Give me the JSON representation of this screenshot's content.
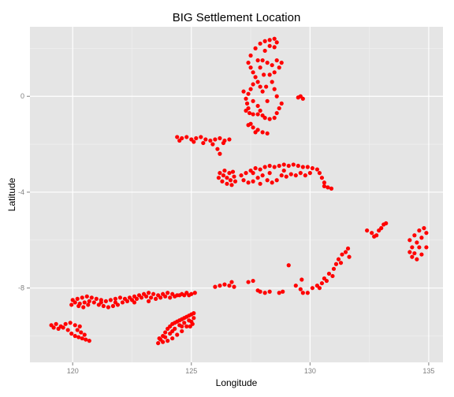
{
  "chart_data": {
    "type": "scatter",
    "title": "BIG Settlement Location",
    "xlabel": "Longitude",
    "ylabel": "Latitude",
    "xlim": [
      118.2,
      135.6
    ],
    "ylim": [
      -11.1,
      2.9
    ],
    "x_ticks": [
      120,
      125,
      130,
      135
    ],
    "y_ticks": [
      0,
      -4,
      -8
    ],
    "grid": true,
    "panel_color": "#e5e5e5",
    "grid_color": "#ffffff",
    "point_color": "#ff0000",
    "series": [
      {
        "points": [
          [
            119.1,
            -9.55
          ],
          [
            119.3,
            -9.5
          ],
          [
            119.5,
            -9.6
          ],
          [
            119.7,
            -9.5
          ],
          [
            119.9,
            -9.45
          ],
          [
            120.1,
            -9.55
          ],
          [
            120.3,
            -9.6
          ],
          [
            119.2,
            -9.65
          ],
          [
            119.4,
            -9.7
          ],
          [
            119.6,
            -9.65
          ],
          [
            119.8,
            -9.75
          ],
          [
            119.95,
            -9.9
          ],
          [
            120.1,
            -10.0
          ],
          [
            120.25,
            -10.05
          ],
          [
            120.4,
            -10.1
          ],
          [
            120.55,
            -10.15
          ],
          [
            120.7,
            -10.2
          ],
          [
            120.5,
            -9.95
          ],
          [
            120.35,
            -9.85
          ],
          [
            120.2,
            -9.75
          ],
          [
            120.0,
            -8.5
          ],
          [
            120.2,
            -8.45
          ],
          [
            120.4,
            -8.4
          ],
          [
            120.6,
            -8.35
          ],
          [
            120.8,
            -8.4
          ],
          [
            121.0,
            -8.45
          ],
          [
            121.2,
            -8.5
          ],
          [
            121.4,
            -8.55
          ],
          [
            121.6,
            -8.5
          ],
          [
            121.8,
            -8.45
          ],
          [
            122.0,
            -8.4
          ],
          [
            122.2,
            -8.45
          ],
          [
            122.4,
            -8.4
          ],
          [
            122.6,
            -8.35
          ],
          [
            122.8,
            -8.3
          ],
          [
            123.0,
            -8.25
          ],
          [
            123.2,
            -8.2
          ],
          [
            123.4,
            -8.25
          ],
          [
            123.6,
            -8.3
          ],
          [
            123.8,
            -8.25
          ],
          [
            124.0,
            -8.2
          ],
          [
            124.2,
            -8.25
          ],
          [
            124.4,
            -8.3
          ],
          [
            124.6,
            -8.25
          ],
          [
            124.8,
            -8.2
          ],
          [
            125.0,
            -8.25
          ],
          [
            125.15,
            -8.2
          ],
          [
            120.1,
            -8.6
          ],
          [
            120.3,
            -8.65
          ],
          [
            120.5,
            -8.6
          ],
          [
            120.7,
            -8.55
          ],
          [
            120.9,
            -8.6
          ],
          [
            121.1,
            -8.7
          ],
          [
            121.3,
            -8.75
          ],
          [
            121.5,
            -8.8
          ],
          [
            121.7,
            -8.75
          ],
          [
            121.9,
            -8.7
          ],
          [
            122.1,
            -8.6
          ],
          [
            122.3,
            -8.55
          ],
          [
            122.5,
            -8.5
          ],
          [
            122.7,
            -8.45
          ],
          [
            122.9,
            -8.4
          ],
          [
            123.1,
            -8.35
          ],
          [
            123.3,
            -8.4
          ],
          [
            123.5,
            -8.45
          ],
          [
            123.7,
            -8.4
          ],
          [
            123.9,
            -8.35
          ],
          [
            124.1,
            -8.4
          ],
          [
            124.3,
            -8.35
          ],
          [
            124.5,
            -8.3
          ],
          [
            124.7,
            -8.3
          ],
          [
            124.9,
            -8.3
          ],
          [
            120.25,
            -8.75
          ],
          [
            120.45,
            -8.8
          ],
          [
            120.65,
            -8.7
          ],
          [
            121.2,
            -8.6
          ],
          [
            121.8,
            -8.6
          ],
          [
            122.6,
            -8.6
          ],
          [
            123.2,
            -8.55
          ],
          [
            119.95,
            -8.7
          ],
          [
            123.6,
            -10.3
          ],
          [
            123.7,
            -10.15
          ],
          [
            123.8,
            -10.0
          ],
          [
            123.9,
            -9.85
          ],
          [
            124.0,
            -9.7
          ],
          [
            124.1,
            -9.6
          ],
          [
            124.2,
            -9.5
          ],
          [
            124.3,
            -9.45
          ],
          [
            124.4,
            -9.4
          ],
          [
            124.5,
            -9.35
          ],
          [
            124.6,
            -9.3
          ],
          [
            124.7,
            -9.25
          ],
          [
            124.8,
            -9.2
          ],
          [
            124.9,
            -9.15
          ],
          [
            125.0,
            -9.1
          ],
          [
            125.1,
            -9.05
          ],
          [
            123.65,
            -10.1
          ],
          [
            123.8,
            -10.25
          ],
          [
            124.0,
            -10.2
          ],
          [
            124.2,
            -10.1
          ],
          [
            124.4,
            -9.95
          ],
          [
            124.6,
            -9.8
          ],
          [
            124.8,
            -9.6
          ],
          [
            125.0,
            -9.4
          ],
          [
            125.1,
            -9.25
          ],
          [
            124.1,
            -9.9
          ],
          [
            124.3,
            -9.7
          ],
          [
            124.5,
            -9.55
          ],
          [
            124.7,
            -9.45
          ],
          [
            124.9,
            -9.35
          ],
          [
            123.9,
            -10.05
          ],
          [
            124.2,
            -9.8
          ],
          [
            124.6,
            -9.6
          ],
          [
            124.95,
            -9.6
          ],
          [
            125.05,
            -9.5
          ],
          [
            126.0,
            -7.95
          ],
          [
            126.2,
            -7.9
          ],
          [
            126.4,
            -7.85
          ],
          [
            126.6,
            -7.9
          ],
          [
            126.8,
            -7.95
          ],
          [
            127.4,
            -7.75
          ],
          [
            127.6,
            -7.7
          ],
          [
            127.8,
            -8.1
          ],
          [
            127.9,
            -8.15
          ],
          [
            128.1,
            -8.2
          ],
          [
            128.3,
            -8.15
          ],
          [
            128.7,
            -8.2
          ],
          [
            128.85,
            -8.15
          ],
          [
            129.1,
            -7.05
          ],
          [
            129.4,
            -7.9
          ],
          [
            129.6,
            -8.05
          ],
          [
            129.7,
            -8.2
          ],
          [
            129.65,
            -7.65
          ],
          [
            126.7,
            -7.75
          ],
          [
            129.9,
            -8.2
          ],
          [
            130.1,
            -8.0
          ],
          [
            130.3,
            -7.9
          ],
          [
            130.5,
            -7.8
          ],
          [
            130.6,
            -7.6
          ],
          [
            130.8,
            -7.4
          ],
          [
            131.0,
            -7.2
          ],
          [
            131.1,
            -7.0
          ],
          [
            131.2,
            -6.8
          ],
          [
            131.35,
            -6.6
          ],
          [
            131.3,
            -6.95
          ],
          [
            131.5,
            -6.5
          ],
          [
            131.6,
            -6.35
          ],
          [
            131.65,
            -6.7
          ],
          [
            130.95,
            -7.5
          ],
          [
            130.7,
            -7.7
          ],
          [
            130.4,
            -8.0
          ],
          [
            132.4,
            -5.6
          ],
          [
            132.6,
            -5.7
          ],
          [
            132.8,
            -5.8
          ],
          [
            132.9,
            -5.6
          ],
          [
            133.0,
            -5.5
          ],
          [
            133.1,
            -5.35
          ],
          [
            133.2,
            -5.3
          ],
          [
            132.7,
            -5.85
          ],
          [
            134.2,
            -6.0
          ],
          [
            134.4,
            -5.8
          ],
          [
            134.6,
            -5.6
          ],
          [
            134.8,
            -5.5
          ],
          [
            134.9,
            -5.7
          ],
          [
            134.7,
            -5.9
          ],
          [
            134.5,
            -6.1
          ],
          [
            134.3,
            -6.3
          ],
          [
            134.2,
            -6.5
          ],
          [
            134.3,
            -6.7
          ],
          [
            134.5,
            -6.8
          ],
          [
            134.7,
            -6.6
          ],
          [
            134.9,
            -6.3
          ],
          [
            134.6,
            -6.3
          ],
          [
            134.4,
            -6.55
          ],
          [
            124.4,
            -1.7
          ],
          [
            124.6,
            -1.75
          ],
          [
            124.8,
            -1.7
          ],
          [
            125.0,
            -1.8
          ],
          [
            125.2,
            -1.75
          ],
          [
            125.4,
            -1.7
          ],
          [
            125.6,
            -1.8
          ],
          [
            125.8,
            -1.85
          ],
          [
            126.0,
            -1.8
          ],
          [
            126.2,
            -1.75
          ],
          [
            126.4,
            -1.85
          ],
          [
            125.9,
            -2.0
          ],
          [
            126.1,
            -2.2
          ],
          [
            126.2,
            -2.4
          ],
          [
            126.35,
            -1.95
          ],
          [
            124.5,
            -1.85
          ],
          [
            125.1,
            -1.9
          ],
          [
            125.5,
            -1.95
          ],
          [
            126.6,
            -1.8
          ],
          [
            127.4,
            1.4
          ],
          [
            127.5,
            1.2
          ],
          [
            127.6,
            1.0
          ],
          [
            127.7,
            0.8
          ],
          [
            127.8,
            0.6
          ],
          [
            127.9,
            0.4
          ],
          [
            128.0,
            0.2
          ],
          [
            127.5,
            1.7
          ],
          [
            127.7,
            2.0
          ],
          [
            127.9,
            2.2
          ],
          [
            128.1,
            2.3
          ],
          [
            128.3,
            2.35
          ],
          [
            128.5,
            2.4
          ],
          [
            128.6,
            2.25
          ],
          [
            128.5,
            2.05
          ],
          [
            128.3,
            2.1
          ],
          [
            128.1,
            1.9
          ],
          [
            127.8,
            1.5
          ],
          [
            127.6,
            0.5
          ],
          [
            127.5,
            0.3
          ],
          [
            127.4,
            0.1
          ],
          [
            127.3,
            -0.1
          ],
          [
            127.35,
            -0.3
          ],
          [
            127.4,
            -0.5
          ],
          [
            127.45,
            -0.7
          ],
          [
            127.6,
            -0.2
          ],
          [
            127.8,
            -0.4
          ],
          [
            127.9,
            -0.6
          ],
          [
            128.0,
            -0.8
          ],
          [
            128.1,
            -0.9
          ],
          [
            128.3,
            -0.95
          ],
          [
            128.5,
            -0.9
          ],
          [
            128.6,
            -0.7
          ],
          [
            128.7,
            -0.5
          ],
          [
            128.8,
            -0.3
          ],
          [
            128.6,
            0.0
          ],
          [
            128.5,
            0.3
          ],
          [
            128.4,
            0.6
          ],
          [
            128.3,
            0.9
          ],
          [
            128.5,
            1.0
          ],
          [
            128.7,
            1.2
          ],
          [
            128.8,
            1.4
          ],
          [
            128.6,
            1.5
          ],
          [
            128.4,
            1.3
          ],
          [
            128.2,
            1.4
          ],
          [
            128.0,
            1.5
          ],
          [
            127.9,
            1.2
          ],
          [
            128.05,
            0.9
          ],
          [
            127.3,
            -0.6
          ],
          [
            127.6,
            -0.75
          ],
          [
            127.8,
            -0.75
          ],
          [
            128.2,
            -0.2
          ],
          [
            128.15,
            0.4
          ],
          [
            127.2,
            0.2
          ],
          [
            129.5,
            -0.05
          ],
          [
            129.7,
            -0.1
          ],
          [
            129.6,
            0.0
          ],
          [
            127.4,
            -1.2
          ],
          [
            127.6,
            -1.3
          ],
          [
            127.8,
            -1.4
          ],
          [
            128.0,
            -1.5
          ],
          [
            128.2,
            -1.55
          ],
          [
            127.7,
            -1.5
          ],
          [
            127.5,
            -1.15
          ],
          [
            126.2,
            -3.2
          ],
          [
            126.4,
            -3.1
          ],
          [
            126.6,
            -3.2
          ],
          [
            126.8,
            -3.35
          ],
          [
            126.85,
            -3.55
          ],
          [
            126.7,
            -3.7
          ],
          [
            126.5,
            -3.65
          ],
          [
            126.3,
            -3.55
          ],
          [
            126.15,
            -3.4
          ],
          [
            126.5,
            -3.4
          ],
          [
            126.65,
            -3.5
          ],
          [
            126.35,
            -3.3
          ],
          [
            126.75,
            -3.15
          ],
          [
            127.1,
            -3.3
          ],
          [
            127.3,
            -3.2
          ],
          [
            127.5,
            -3.1
          ],
          [
            127.7,
            -3.0
          ],
          [
            127.9,
            -3.05
          ],
          [
            128.1,
            -2.95
          ],
          [
            128.3,
            -2.9
          ],
          [
            128.5,
            -2.95
          ],
          [
            128.7,
            -2.9
          ],
          [
            128.9,
            -2.85
          ],
          [
            129.1,
            -2.9
          ],
          [
            129.3,
            -2.85
          ],
          [
            129.5,
            -2.9
          ],
          [
            129.7,
            -2.95
          ],
          [
            129.9,
            -2.95
          ],
          [
            130.1,
            -3.0
          ],
          [
            130.3,
            -3.05
          ],
          [
            130.4,
            -3.2
          ],
          [
            130.5,
            -3.4
          ],
          [
            130.6,
            -3.6
          ],
          [
            130.75,
            -3.8
          ],
          [
            130.9,
            -3.85
          ],
          [
            130.6,
            -3.75
          ],
          [
            127.2,
            -3.5
          ],
          [
            127.4,
            -3.6
          ],
          [
            127.6,
            -3.55
          ],
          [
            127.8,
            -3.4
          ],
          [
            128.0,
            -3.3
          ],
          [
            128.2,
            -3.5
          ],
          [
            128.4,
            -3.6
          ],
          [
            128.6,
            -3.5
          ],
          [
            128.8,
            -3.3
          ],
          [
            129.0,
            -3.35
          ],
          [
            129.2,
            -3.25
          ],
          [
            129.4,
            -3.3
          ],
          [
            129.6,
            -3.2
          ],
          [
            129.8,
            -3.3
          ],
          [
            130.0,
            -3.2
          ],
          [
            127.6,
            -3.2
          ],
          [
            128.3,
            -3.2
          ],
          [
            128.9,
            -3.1
          ],
          [
            127.9,
            -3.65
          ]
        ]
      }
    ]
  }
}
